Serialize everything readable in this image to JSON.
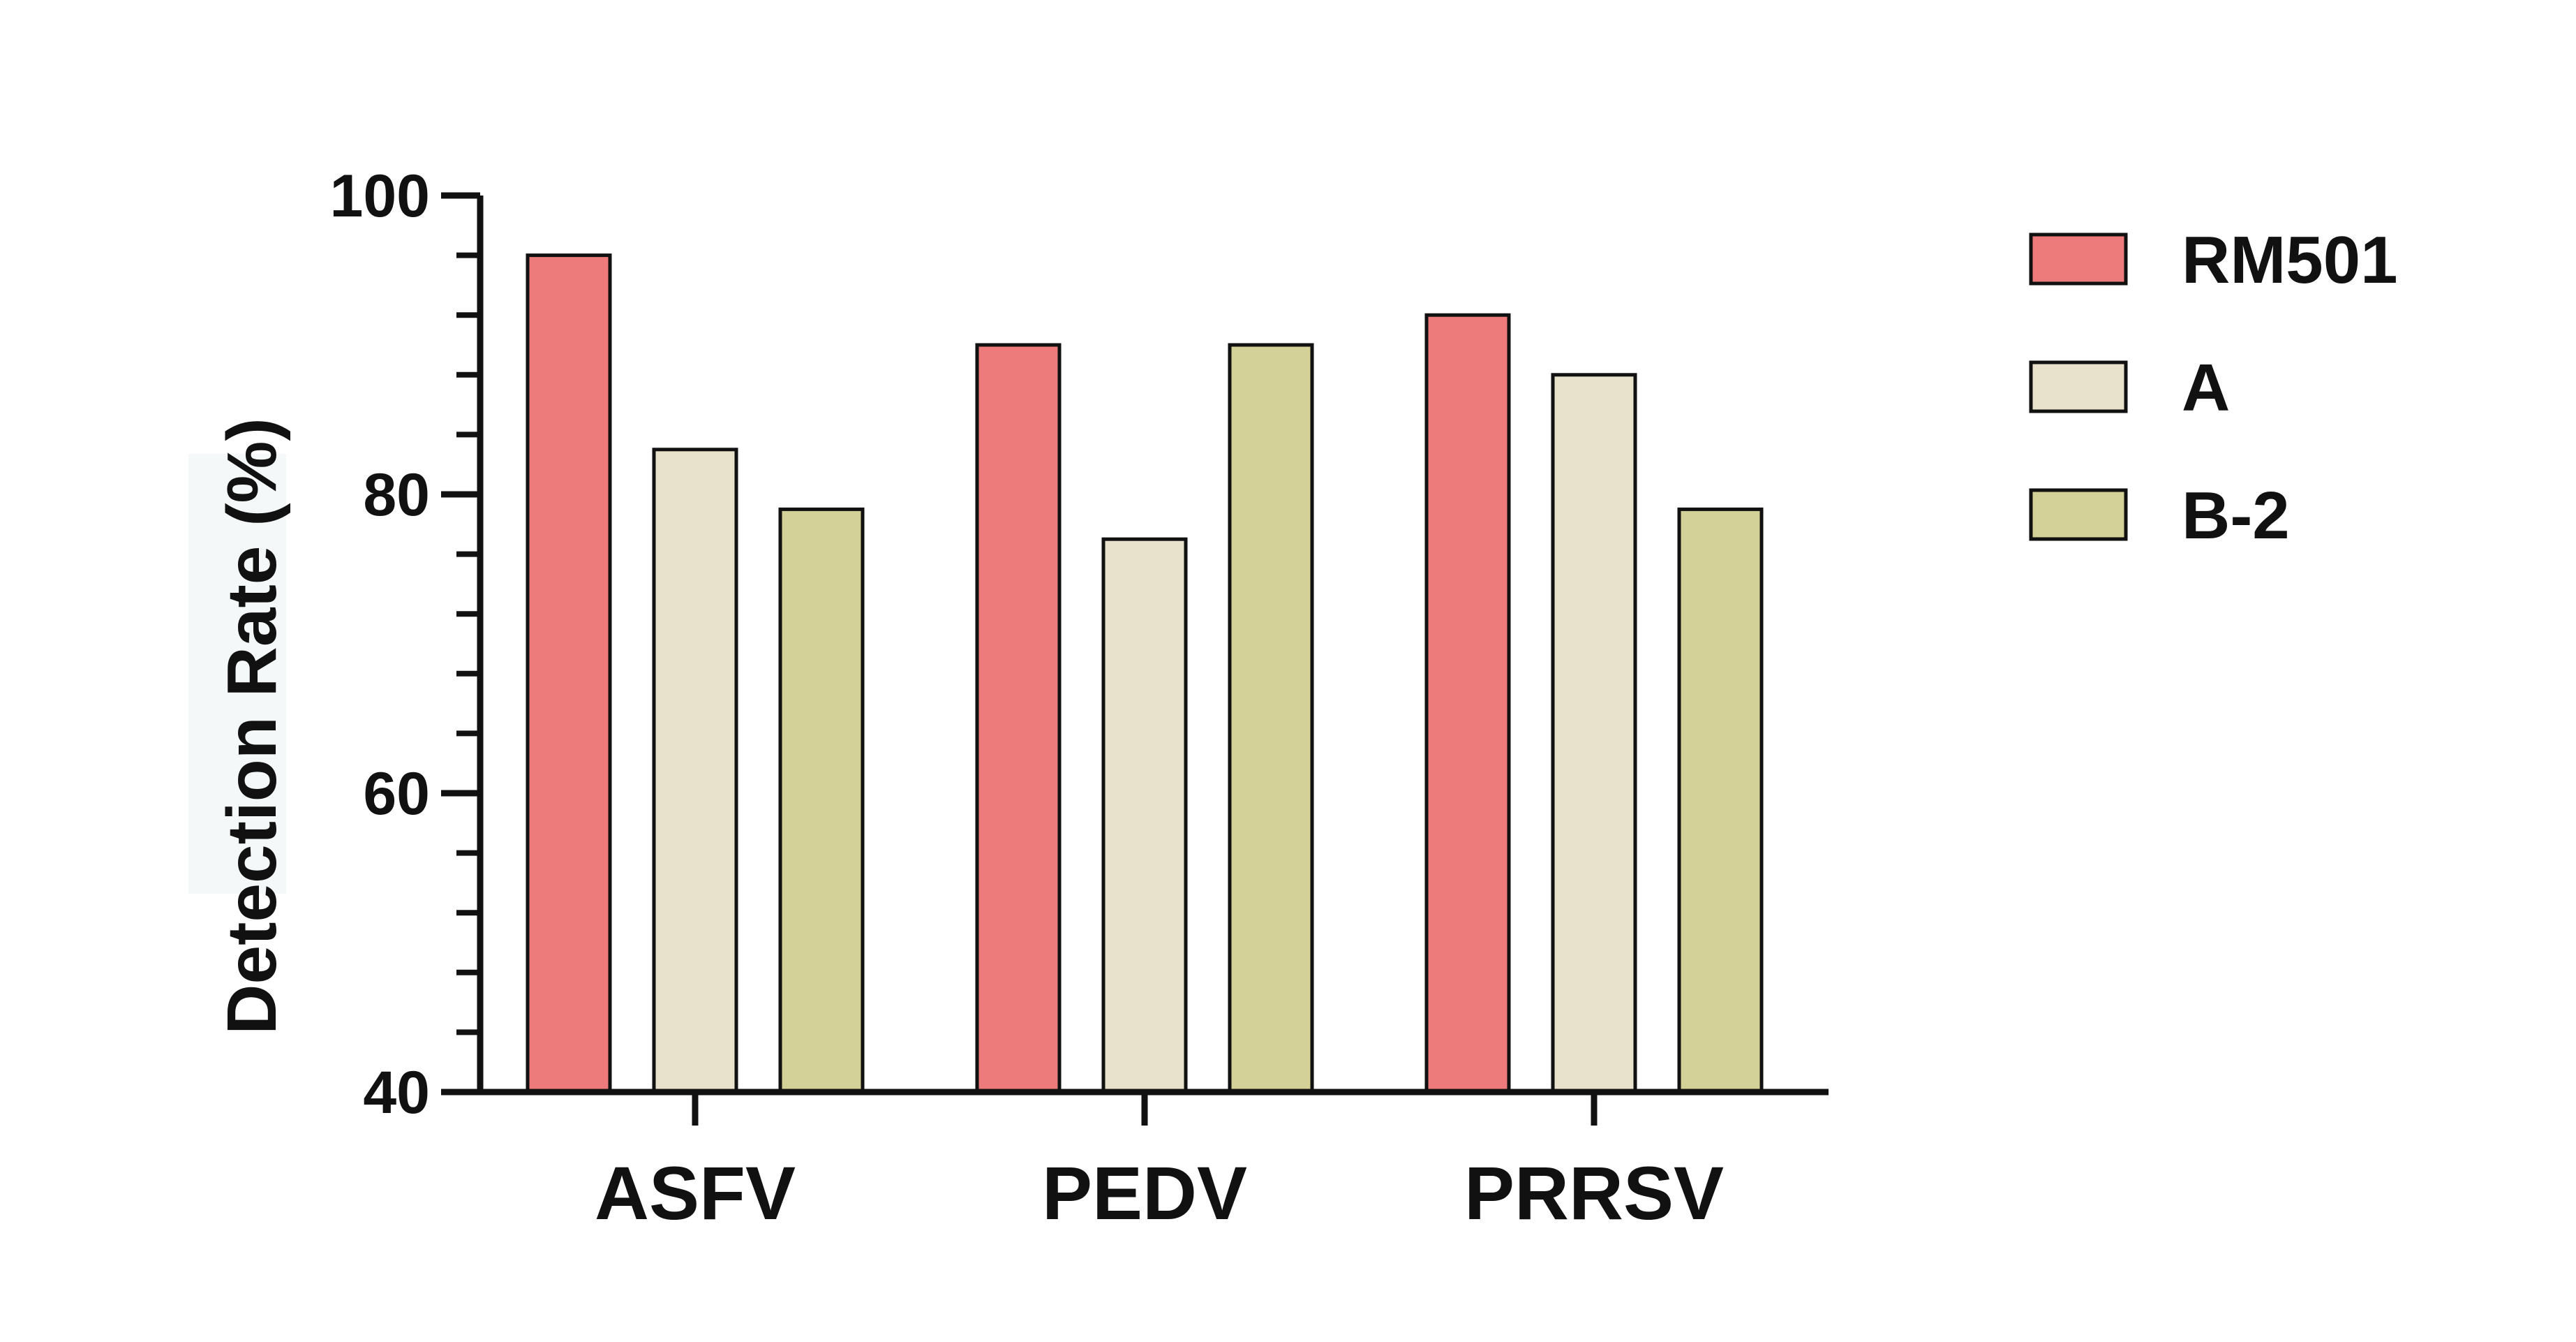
{
  "chart_data": {
    "type": "bar",
    "ylabel": "Detection Rate (%)",
    "xlabel": "",
    "ylim": [
      40,
      100
    ],
    "yticks": [
      40,
      60,
      80,
      100
    ],
    "y_minor_step": 4,
    "categories": [
      "ASFV",
      "PEDV",
      "PRRSV"
    ],
    "series": [
      {
        "name": "RM501",
        "color": "#ee7b7b",
        "values": [
          96,
          90,
          92
        ]
      },
      {
        "name": "A",
        "color": "#e8e2cc",
        "values": [
          83,
          77,
          88
        ]
      },
      {
        "name": "B-2",
        "color": "#d3d198",
        "values": [
          79,
          90,
          79
        ]
      }
    ],
    "legend_position": "right",
    "grid": false
  }
}
